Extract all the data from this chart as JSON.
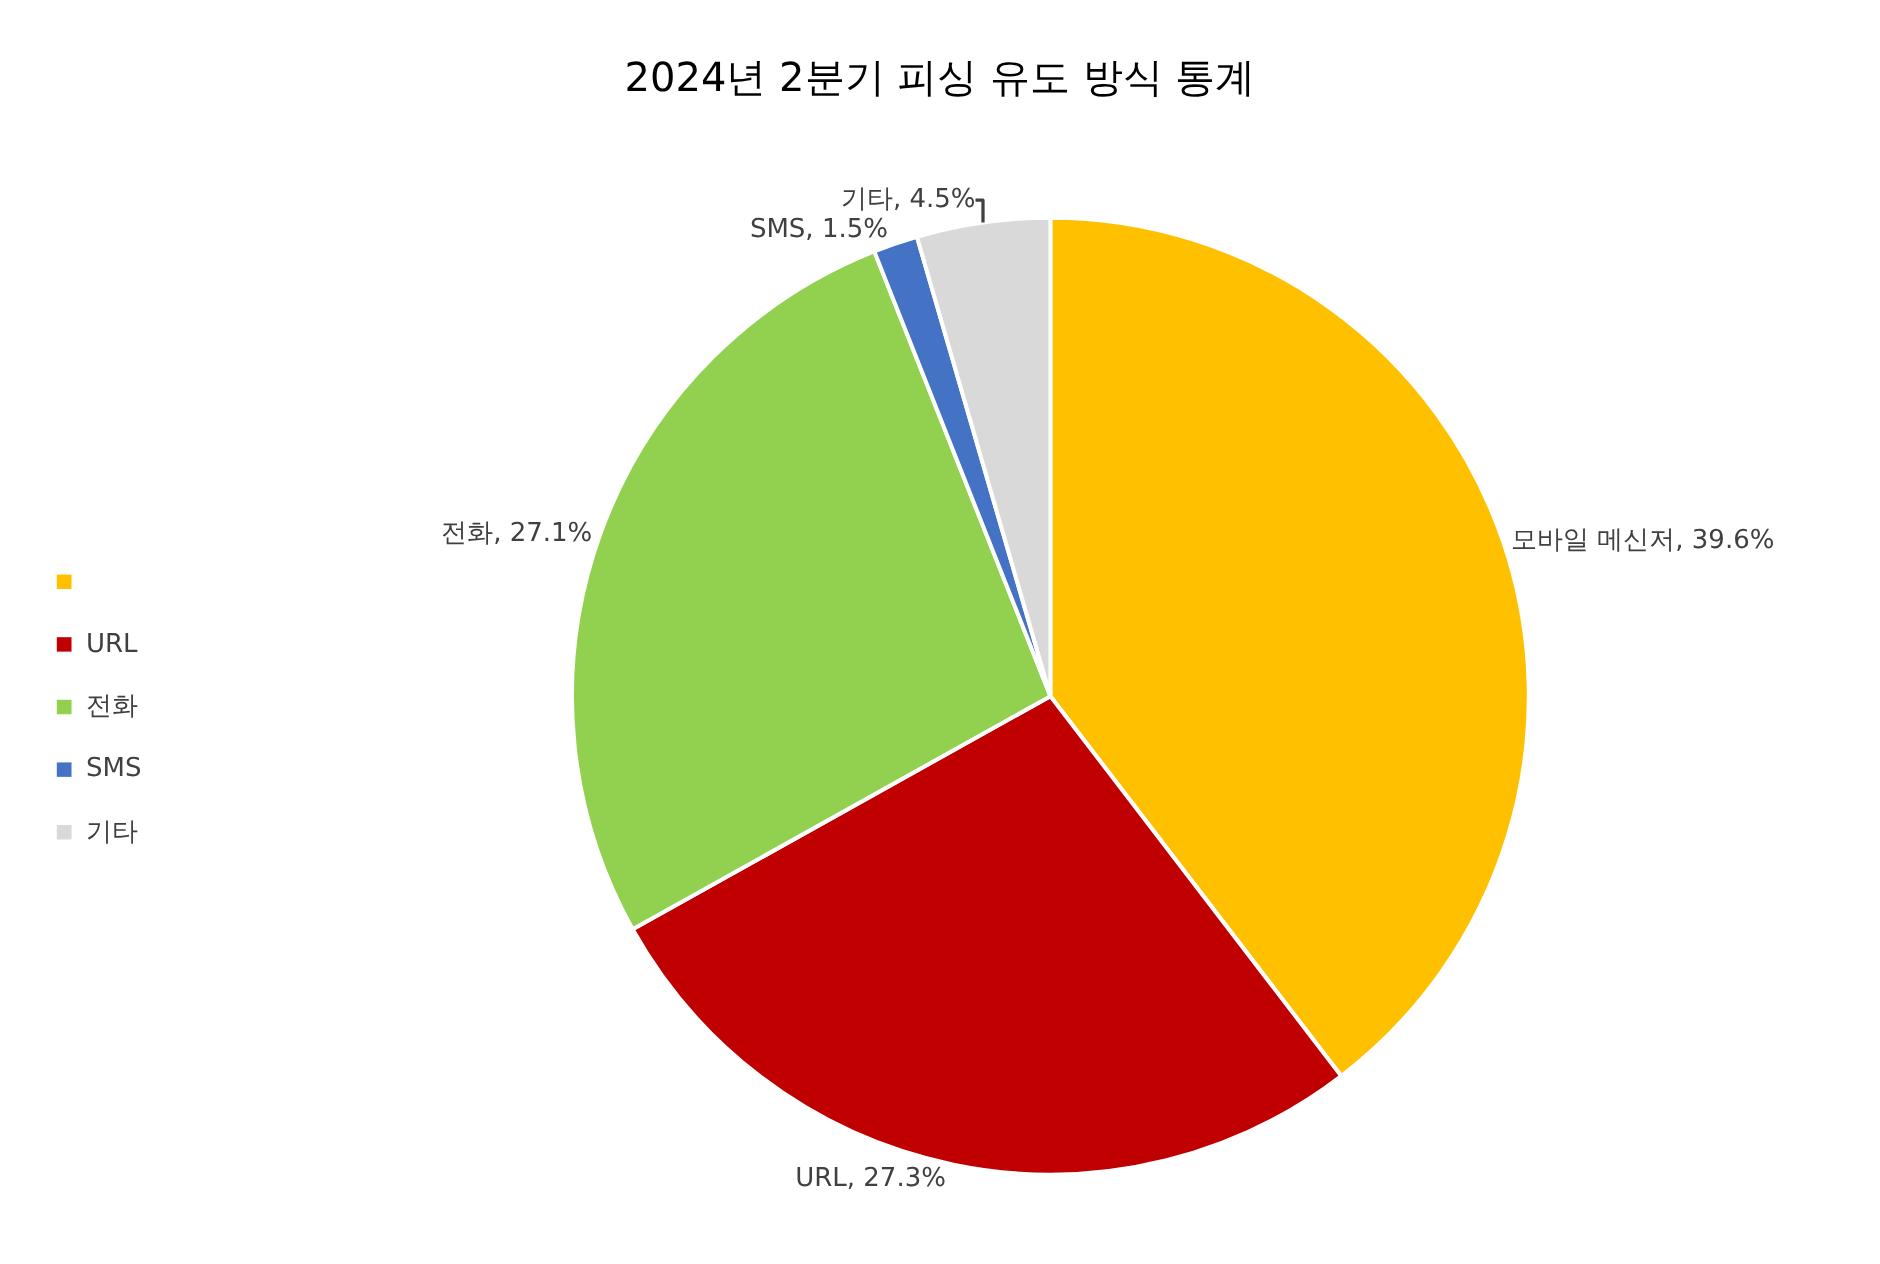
{
  "chart_data": {
    "type": "pie",
    "title": "2024년 2분기 피싱 유도 방식 통계",
    "categories": [
      null,
      "URL",
      "전화",
      "SMS",
      "기타"
    ],
    "values": [
      39.6,
      27.3,
      27.1,
      1.5,
      4.5
    ],
    "colors": [
      "#ffc000",
      "#c00000",
      "#92d050",
      "#4472c4",
      "#d9d9d9"
    ],
    "value_labels": [
      "모바일 메신저, 39.6%",
      "URL, 27.3%",
      "전화, 27.1%",
      "SMS, 1.5%",
      "기타, 4.5%"
    ],
    "legend": "left"
  }
}
